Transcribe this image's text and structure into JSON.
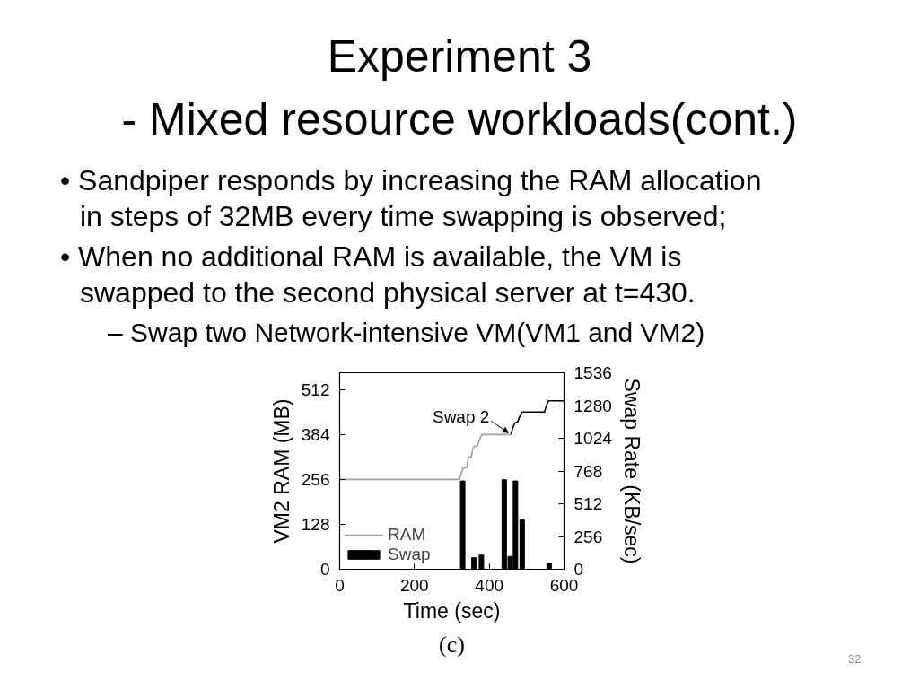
{
  "chart_data": {
    "type": "line",
    "title": "Experiment 3",
    "subtitle": "- Mixed resource workloads(cont.)",
    "xlabel": "Time (sec)",
    "ylabel": "VM2 RAM (MB)",
    "y2label": "Swap Rate (KB/sec)",
    "annotations": [
      "• Sandpiper responds by increasing the RAM allocation in steps of 32MB every time swapping is observed;",
      "• When no additional RAM is available, the VM is swapped to the second physical server at t=430.",
      "– Swap two Network-intensive VM(VM1 and VM2)",
      {
        "text": "Swap 2",
        "x": 458,
        "y": 384
      },
      "(c)",
      "32"
    ],
    "xlim": [
      0,
      600
    ],
    "xticks": [
      0,
      200,
      400,
      600
    ],
    "ylim": [
      0,
      560
    ],
    "yticks": [
      0,
      128,
      256,
      384,
      512
    ],
    "y2lim": [
      0,
      1536
    ],
    "y2ticks": [
      0,
      256,
      512,
      768,
      1024,
      1280,
      1536
    ],
    "legend": "bottom left",
    "series": [
      {
        "name": "RAM",
        "color": "#a0a0a0",
        "x": [
          0,
          320,
          330,
          340,
          344,
          352,
          356,
          362,
          368,
          372,
          380,
          458
        ],
        "values": [
          256,
          256,
          288,
          290,
          320,
          320,
          344,
          352,
          352,
          364,
          384,
          384
        ]
      },
      {
        "color": "#000000",
        "x": [
          458,
          462,
          468,
          476,
          480,
          488,
          548,
          552,
          558,
          600
        ],
        "values": [
          384,
          400,
          416,
          420,
          432,
          448,
          448,
          464,
          480,
          480
        ]
      },
      {
        "name": "Swap",
        "type": "bar",
        "axis": "y2",
        "color": "#000000",
        "x": [
          329,
          359,
          379,
          440,
          456,
          470,
          488,
          560
        ],
        "values": [
          690,
          90,
          110,
          700,
          100,
          690,
          385,
          45
        ]
      }
    ]
  }
}
